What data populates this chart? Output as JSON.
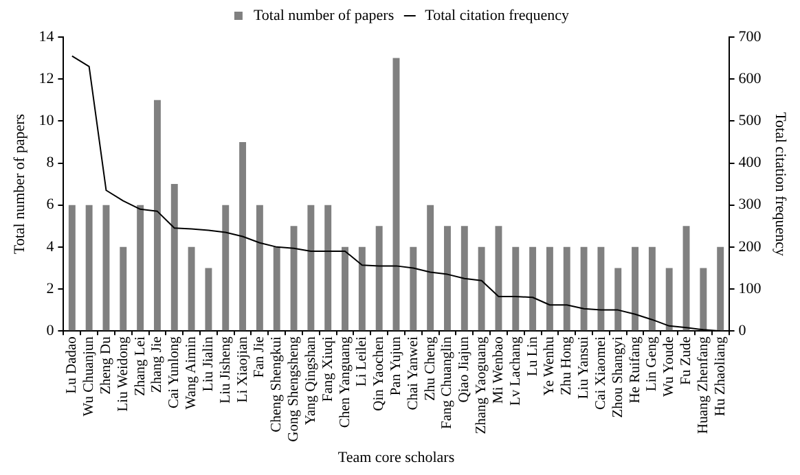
{
  "chart_data": {
    "type": "bar",
    "xlabel": "Team core scholars",
    "ylabel": "Total number of papers",
    "y2label": "Total citation frequency",
    "categories": [
      "Lu Dadao",
      "Wu Chuanjun",
      "Zheng Du",
      "Liu Weidong",
      "Zhang Lei",
      "Zhang Jie",
      "Cai Yunlong",
      "Wang Aimin",
      "Liu Jialin",
      "Liu Jisheng",
      "Li Xiaojian",
      "Fan Jie",
      "Cheng Shengkui",
      "Gong Shengsheng",
      "Yang Qingshan",
      "Fang Xiuqi",
      "Chen Yanguang",
      "Li Leilei",
      "Qin Yaochen",
      "Pan Yujun",
      "Chai Yanwei",
      "Zhu Cheng",
      "Fang Chuanglin",
      "Qiao Jiajun",
      "Zhang Yaoguang",
      "Mi Wenbao",
      "Lv Lachang",
      "Lu Lin",
      "Ye Wenhu",
      "Zhu Hong",
      "Liu Yansui",
      "Cai Xiaomei",
      "Zhou Shangyi",
      "He Ruifang",
      "Lin Geng",
      "Wu Youde",
      "Fu Zude",
      "Huang Zhenfang",
      "Hu Zhaoliang"
    ],
    "series": [
      {
        "name": "Total number of papers",
        "color": "#808080",
        "values": [
          6,
          6,
          6,
          4,
          6,
          11,
          7,
          4,
          3,
          6,
          9,
          6,
          4,
          5,
          6,
          6,
          4,
          4,
          5,
          13,
          4,
          6,
          5,
          5,
          4,
          5,
          4,
          4,
          4,
          4,
          4,
          4,
          3,
          4,
          4,
          3,
          5,
          3,
          4
        ]
      },
      {
        "name": "Total citation frequency",
        "type": "line",
        "axis": "y2",
        "color": "#000000",
        "values": [
          655,
          630,
          335,
          310,
          290,
          285,
          245,
          243,
          240,
          235,
          225,
          210,
          200,
          197,
          190,
          190,
          190,
          157,
          155,
          155,
          150,
          140,
          135,
          125,
          120,
          82,
          82,
          80,
          62,
          62,
          53,
          50,
          50,
          40,
          27,
          12,
          8,
          3,
          0
        ]
      }
    ],
    "ylim": [
      0,
      14
    ],
    "yticks": [
      0,
      2,
      4,
      6,
      8,
      10,
      12,
      14
    ],
    "y2lim": [
      0,
      700
    ],
    "y2ticks": [
      0,
      100,
      200,
      300,
      400,
      500,
      600,
      700
    ],
    "grid": false,
    "legend": "top",
    "marker": "none",
    "line_style": "solid"
  }
}
